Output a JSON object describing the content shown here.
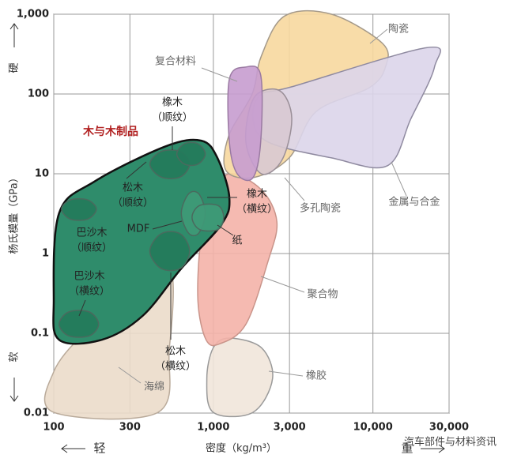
{
  "chart_data": {
    "type": "region",
    "x_label": "密度（kg/m³）",
    "y_label": "杨氏模量（GPa）",
    "y_high": "硬",
    "y_low": "软",
    "x_low": "轻",
    "x_high": "重",
    "source": "汽车部件与材料资讯",
    "log_x": true,
    "log_y": true,
    "grid": true,
    "xlim": [
      100,
      30000
    ],
    "ylim": [
      0.01,
      1000
    ],
    "xticks": [
      100,
      300,
      {
        "value": 1000,
        "label": "1,000"
      },
      {
        "value": 3000,
        "label": "3,000"
      },
      {
        "value": 10000,
        "label": "10,000"
      },
      {
        "value": 30000,
        "label": "30,000"
      }
    ],
    "yticks": [
      0.01,
      0.1,
      1,
      10,
      100,
      {
        "value": 1000,
        "label": "1,000"
      }
    ],
    "regions": [
      {
        "color": "#ebdcca",
        "edge": "#b9aa9a",
        "x": [
          100,
          160,
          360,
          500,
          560,
          530,
          450,
          100
        ],
        "y": [
          0.033,
          0.105,
          0.33,
          0.81,
          0.41,
          0.066,
          0.0102,
          0.0102
        ]
      },
      {
        "color": "#f1e5da",
        "edge": "#9a9a9a",
        "x": [
          1260,
          2000,
          2350,
          1770,
          1000,
          910,
          1000
        ],
        "y": [
          0.087,
          0.066,
          0.027,
          0.0102,
          0.0102,
          0.027,
          0.066
        ]
      },
      {
        "color": "#f4b2a8",
        "edge": "#c9948a",
        "x": [
          1260,
          2000,
          2500,
          2200,
          1600,
          1100,
          900,
          800,
          840,
          1000
        ],
        "y": [
          10,
          6.3,
          2.5,
          0.8,
          0.13,
          0.074,
          0.083,
          0.26,
          1.6,
          5
        ]
      },
      {
        "color": "#f7d89e",
        "edge": "#a59a8a",
        "x": [
          2800,
          5500,
          11500,
          12000,
          9500,
          4400,
          3000,
          1800,
          1200,
          1250,
          1750,
          2000
        ],
        "y": [
          950,
          1000,
          430,
          220,
          120,
          60,
          16,
          9,
          11,
          30,
          100,
          300
        ]
      },
      {
        "color": "#dcd5ea",
        "edge": "#8f8aa0",
        "x": [
          1980,
          3100,
          21700,
          24300,
          17300,
          12300,
          5500,
          2200,
          1770
        ],
        "y": [
          98,
          123,
          380,
          217,
          49,
          12.6,
          15.8,
          25,
          49
        ]
      },
      {
        "color": "#d8c9d2",
        "edge": "#9a8f98",
        "x": [
          1800,
          2600,
          3100,
          2700,
          2000,
          1600
        ],
        "y": [
          90,
          110,
          50,
          15,
          10,
          25
        ]
      },
      {
        "color": "#c79ccf",
        "edge": "#9a7aa2",
        "x": [
          1260,
          1580,
          1980,
          1980,
          1770,
          1410,
          1260
        ],
        "y": [
          154,
          217,
          173,
          25,
          8.9,
          10,
          25
        ]
      },
      {
        "color": "#2f8c6b",
        "edge": "#111111",
        "x": [
          108,
          180,
          500,
          840,
          1060,
          1260,
          1120,
          630,
          360,
          200,
          108,
          100
        ],
        "y": [
          3.2,
          8,
          22,
          26,
          15.8,
          5,
          2.3,
          0.65,
          0.165,
          0.083,
          0.083,
          0.26
        ]
      },
      {
        "color": "#237a5b",
        "edge": "#4a6a5e",
        "x": [
          400,
          470,
          620,
          710,
          620,
          470
        ],
        "y": [
          13.2,
          19,
          19,
          13.2,
          9.1,
          9.1
        ]
      },
      {
        "color": "#237a5b",
        "edge": "#4a6a5e",
        "x": [
          590,
          660,
          800,
          890,
          800,
          660
        ],
        "y": [
          17.7,
          23.8,
          23.8,
          17.7,
          13.2,
          13.2
        ]
      },
      {
        "color": "#237a5b",
        "edge": "#4a6a5e",
        "x": [
          112,
          127,
          163,
          185,
          163,
          127
        ],
        "y": [
          3.6,
          4.7,
          4.7,
          3.6,
          2.7,
          2.7
        ]
      },
      {
        "color": "#237a5b",
        "edge": "#4a6a5e",
        "x": [
          108,
          124,
          167,
          191,
          167,
          124
        ],
        "y": [
          0.13,
          0.185,
          0.185,
          0.13,
          0.093,
          0.093
        ]
      },
      {
        "color": "#237a5b",
        "edge": "#4a6a5e",
        "x": [
          400,
          470,
          620,
          710,
          620,
          470
        ],
        "y": [
          1.07,
          1.77,
          1.77,
          1.07,
          0.65,
          0.65
        ]
      },
      {
        "color": "#3f9a78",
        "edge": "#4a6a5e",
        "x": [
          630,
          700,
          810,
          890,
          810,
          700
        ],
        "y": [
          3.2,
          5.6,
          5.6,
          3.2,
          1.8,
          1.8
        ]
      },
      {
        "color": "#3f9a78",
        "edge": "#4a6a5e",
        "x": [
          735,
          820,
          1070,
          1160,
          1070,
          820
        ],
        "y": [
          2.85,
          4,
          4,
          2.85,
          2,
          2
        ]
      }
    ],
    "annotations": [
      {
        "lines": [
          "陶瓷"
        ]
      },
      {
        "lines": [
          "复合材料"
        ]
      },
      {
        "lines": [
          "橡木",
          "（顺纹）"
        ]
      },
      {
        "lines": [
          "木与木制品"
        ]
      },
      {
        "lines": [
          "松木",
          "（顺纹）"
        ]
      },
      {
        "lines": [
          "橡木",
          "（横纹）"
        ]
      },
      {
        "lines": [
          "多孔陶瓷"
        ]
      },
      {
        "lines": [
          "金属与合金"
        ]
      },
      {
        "lines": [
          "MDF"
        ]
      },
      {
        "lines": [
          "纸"
        ]
      },
      {
        "lines": [
          "巴沙木",
          "（顺纹）"
        ]
      },
      {
        "lines": [
          "巴沙木",
          "（横纹）"
        ]
      },
      {
        "lines": [
          "聚合物"
        ]
      },
      {
        "lines": [
          "松木",
          "（横纹）"
        ]
      },
      {
        "lines": [
          "海绵"
        ]
      },
      {
        "lines": [
          "橡胶"
        ]
      }
    ]
  }
}
